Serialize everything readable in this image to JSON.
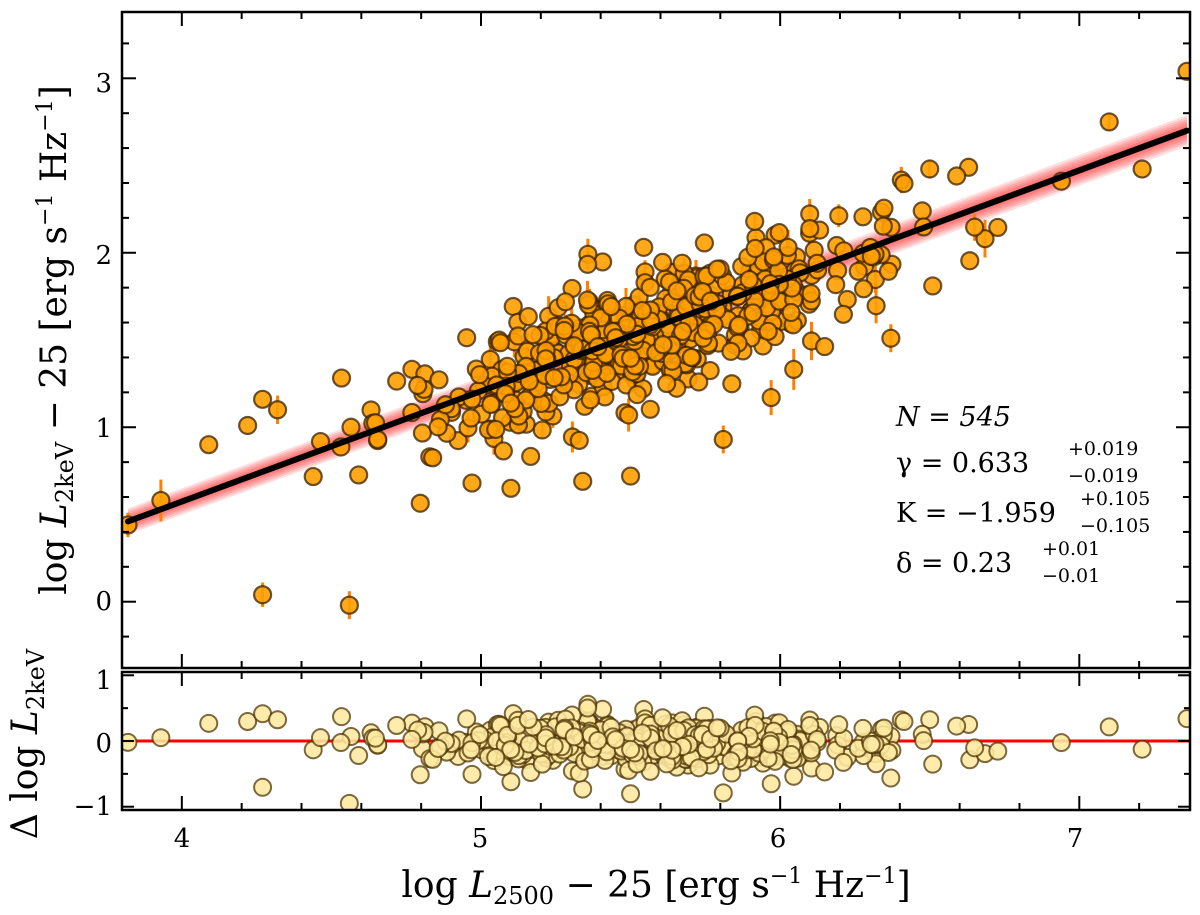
{
  "chart_data": [
    {
      "panel": "main",
      "type": "scatter",
      "xlabel": "log L_2500 − 25 [erg s^−1 Hz^−1]",
      "ylabel": "log L_2keV − 25 [erg s^−1 Hz^−1]",
      "xlim": [
        3.8,
        7.37
      ],
      "ylim": [
        -0.38,
        3.38
      ],
      "x_ticks": [
        4,
        5,
        6,
        7
      ],
      "y_ticks": [
        0,
        1,
        2,
        3
      ],
      "n_points": 545,
      "marker_color": "#ff9f00",
      "marker_edge_color": "#3a2000",
      "errorbar_color": "#ff8000",
      "fit_line_color": "#000000",
      "fit_band_color": "#ff0000",
      "fit": {
        "x": [
          3.82,
          7.36
        ],
        "y": [
          0.46,
          2.7
        ]
      },
      "outliers": [
        {
          "x": 3.82,
          "y": 0.44
        },
        {
          "x": 3.93,
          "y": 0.58
        },
        {
          "x": 4.27,
          "y": 0.04
        },
        {
          "x": 4.56,
          "y": -0.02
        },
        {
          "x": 5.81,
          "y": 0.93
        },
        {
          "x": 5.97,
          "y": 1.17
        },
        {
          "x": 6.37,
          "y": 1.51
        },
        {
          "x": 6.51,
          "y": 1.81
        },
        {
          "x": 7.1,
          "y": 2.75
        },
        {
          "x": 7.21,
          "y": 2.48
        },
        {
          "x": 7.36,
          "y": 3.04
        },
        {
          "x": 6.94,
          "y": 2.41
        },
        {
          "x": 6.5,
          "y": 2.48
        },
        {
          "x": 6.63,
          "y": 2.49
        },
        {
          "x": 6.59,
          "y": 2.44
        },
        {
          "x": 5.34,
          "y": 0.69
        },
        {
          "x": 5.5,
          "y": 0.72
        },
        {
          "x": 4.97,
          "y": 0.68
        },
        {
          "x": 5.1,
          "y": 0.65
        },
        {
          "x": 4.09,
          "y": 0.9
        },
        {
          "x": 4.22,
          "y": 1.01
        },
        {
          "x": 4.27,
          "y": 1.16
        },
        {
          "x": 4.32,
          "y": 1.1
        }
      ],
      "stats": {
        "N": "N = 545",
        "gamma": "γ = 0.633",
        "gamma_up": "+0.019",
        "gamma_down": "−0.019",
        "K": "K = −1.959",
        "K_up": "+0.105",
        "K_down": "−0.105",
        "delta": "δ = 0.23",
        "delta_up": "+0.01",
        "delta_down": "−0.01"
      }
    },
    {
      "panel": "residuals",
      "type": "scatter",
      "xlabel": "log L_2500 − 25 [erg s^−1 Hz^−1]",
      "ylabel": "Δ log L_2keV",
      "xlim": [
        3.8,
        7.37
      ],
      "ylim": [
        -1.05,
        1.05
      ],
      "x_ticks": [
        4,
        5,
        6,
        7
      ],
      "y_ticks": [
        -1,
        0,
        1
      ],
      "marker_color": "#ffe9a0",
      "marker_edge_color": "#4a3000",
      "zero_line_color": "#ff0000"
    }
  ],
  "axis_labels": {
    "x_log": "log",
    "x_L": "L",
    "x_sub": "2500",
    "x_tail": "− 25 [erg s",
    "x_exp1": "−1",
    "x_mid": " Hz",
    "x_exp2": "−1",
    "x_end": "]",
    "y_log": "log",
    "y_L": "L",
    "y_sub": "2keV",
    "y_tail": "− 25 [erg s",
    "y_exp1": "−1",
    "y_mid": " Hz",
    "y_exp2": "−1",
    "y_end": "]",
    "res_delta": "Δ log",
    "res_L": "L",
    "res_sub": "2keV"
  },
  "x_tick_labels": [
    "4",
    "5",
    "6",
    "7"
  ],
  "y_tick_labels": [
    "0",
    "1",
    "2",
    "3"
  ],
  "res_tick_labels": [
    "−1",
    "0",
    "1"
  ]
}
